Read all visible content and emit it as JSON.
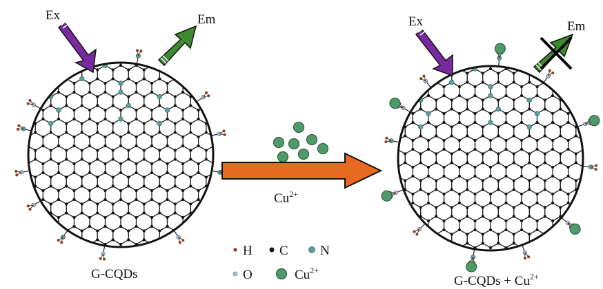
{
  "left_dot": {
    "label": "G-CQDs",
    "excitation_label": "Ex",
    "emission_label": "Em"
  },
  "right_dot": {
    "label": "G-CQDs + Cu",
    "label_sup": "2+",
    "excitation_label": "Ex",
    "emission_label": "Em",
    "emission_quenched": true
  },
  "reaction": {
    "label": "Cu",
    "label_sup": "2+"
  },
  "legend": [
    {
      "symbol": "H",
      "label": "H",
      "color": "#8b3a1e"
    },
    {
      "symbol": "C",
      "label": "C",
      "color": "#111111"
    },
    {
      "symbol": "N",
      "label": "N",
      "color": "#5b9e9a"
    },
    {
      "symbol": "O",
      "label": "O",
      "color": "#a9c4df"
    },
    {
      "symbol": "Cu",
      "label": "Cu",
      "label_sup": "2+",
      "color": "#4f9a6a"
    }
  ],
  "colors": {
    "excitation_arrow": "#7a2aa0",
    "emission_arrow": "#3f8a2e",
    "reaction_arrow": "#e86a22",
    "quench_mark": "#000000"
  }
}
